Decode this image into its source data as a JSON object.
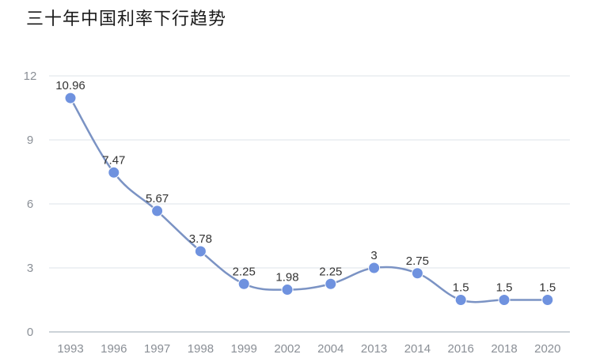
{
  "chart_data": {
    "type": "line",
    "title": "三十年中国利率下行趋势",
    "categories": [
      "1993",
      "1996",
      "1997",
      "1998",
      "1999",
      "2002",
      "2004",
      "2013",
      "2014",
      "2016",
      "2018",
      "2020"
    ],
    "series": [
      {
        "values": [
          10.96,
          7.47,
          5.67,
          3.78,
          2.25,
          1.98,
          2.25,
          3,
          2.75,
          1.5,
          1.5,
          1.5
        ],
        "labels": [
          "10.96",
          "7.47",
          "5.67",
          "3.78",
          "2.25",
          "1.98",
          "2.25",
          "3",
          "2.75",
          "1.5",
          "1.5",
          "1.5"
        ]
      }
    ],
    "ylim": [
      0,
      12
    ],
    "yticks": [
      "0",
      "3",
      "6",
      "9",
      "12"
    ],
    "ytick_values": [
      0,
      3,
      6,
      9,
      12
    ],
    "grid": true,
    "smooth": true,
    "colors": {
      "line": "#7b93c4",
      "point": "#6f92df",
      "grid": "#dde3ea"
    }
  }
}
